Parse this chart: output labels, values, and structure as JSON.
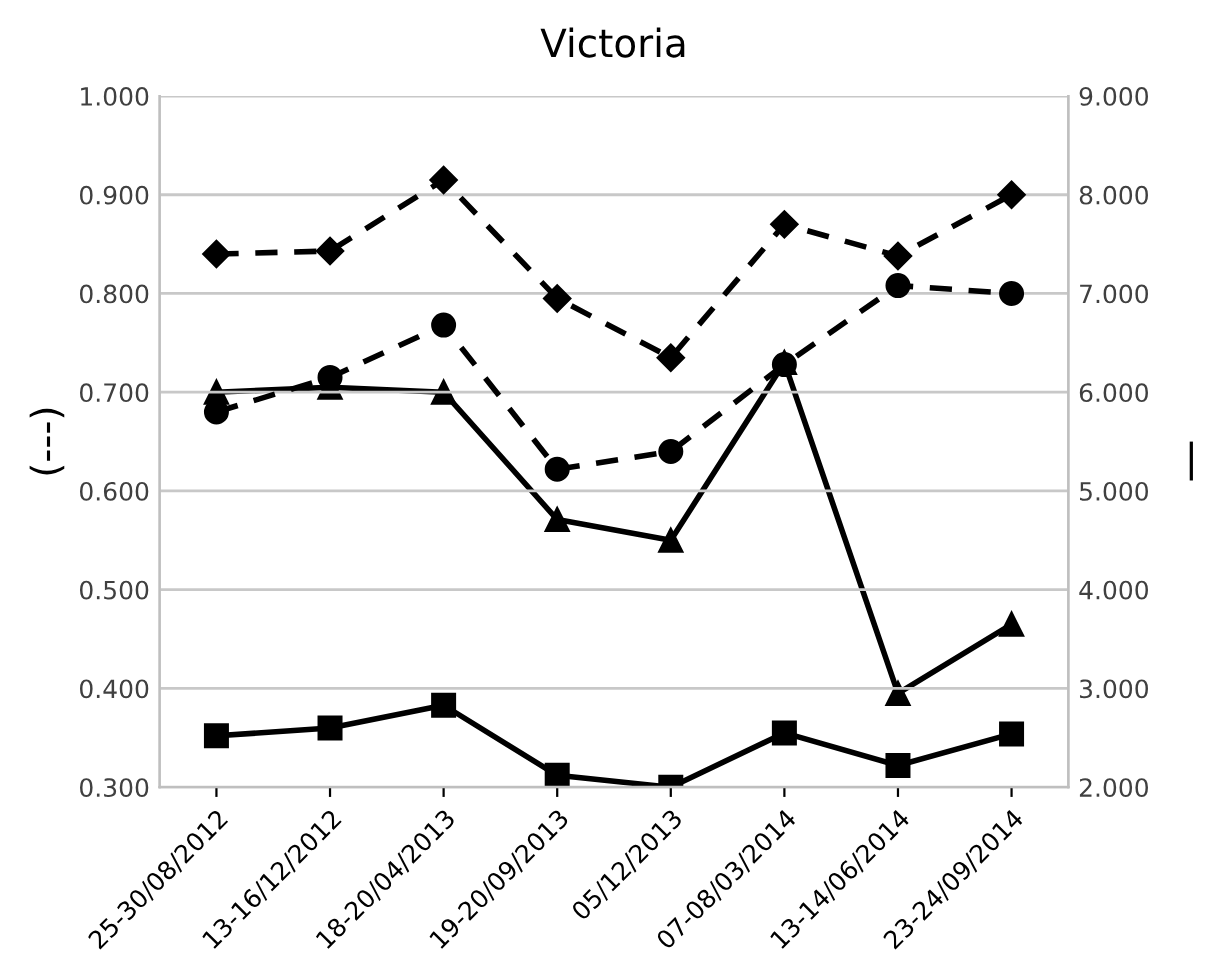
{
  "chart_data": {
    "type": "line",
    "title": "Victoria",
    "ylabel": "(---)",
    "y2label": "|",
    "categories": [
      "25-30/08/2012",
      "13-16/12/2012",
      "18-20/04/2013",
      "19-20/09/2013",
      "05/12/2013",
      "07-08/03/2014",
      "13-14/06/2014",
      "23-24/09/2014"
    ],
    "series": [
      {
        "color": "#000000",
        "marker": "diamond",
        "line_style": "dashed",
        "values": [
          0.84,
          0.843,
          0.915,
          0.795,
          0.735,
          0.87,
          0.838,
          0.9
        ]
      },
      {
        "color": "#000000",
        "marker": "circle",
        "line_style": "dashed",
        "values": [
          0.68,
          0.715,
          0.768,
          0.622,
          0.64,
          0.728,
          0.808,
          0.8
        ]
      },
      {
        "color": "#000000",
        "marker": "triangle",
        "line_style": "solid",
        "axis": "y2",
        "values": [
          6.0,
          6.05,
          6.0,
          4.71,
          4.5,
          6.3,
          2.95,
          3.65
        ]
      },
      {
        "color": "#000000",
        "marker": "square",
        "line_style": "solid",
        "axis": "y2",
        "values": [
          2.52,
          2.6,
          2.83,
          2.12,
          2.0,
          2.55,
          2.22,
          2.54
        ]
      }
    ],
    "ylim": [
      0.3,
      1.0
    ],
    "yticks": [
      {
        "value": 0.3,
        "label": "0.300"
      },
      {
        "value": 0.4,
        "label": "0.400"
      },
      {
        "value": 0.5,
        "label": "0.500"
      },
      {
        "value": 0.6,
        "label": "0.600"
      },
      {
        "value": 0.7,
        "label": "0.700"
      },
      {
        "value": 0.8,
        "label": "0.800"
      },
      {
        "value": 0.9,
        "label": "0.900"
      },
      {
        "value": 1.0,
        "label": "1.000"
      }
    ],
    "y2lim": [
      2.0,
      9.0
    ],
    "y2ticks": [
      {
        "value": 2,
        "label": "2.000"
      },
      {
        "value": 3,
        "label": "3.000"
      },
      {
        "value": 4,
        "label": "4.000"
      },
      {
        "value": 5,
        "label": "5.000"
      },
      {
        "value": 6,
        "label": "6.000"
      },
      {
        "value": 7,
        "label": "7.000"
      },
      {
        "value": 8,
        "label": "8.000"
      },
      {
        "value": 9,
        "label": "9.000"
      }
    ],
    "grid": "y",
    "legend": false
  }
}
